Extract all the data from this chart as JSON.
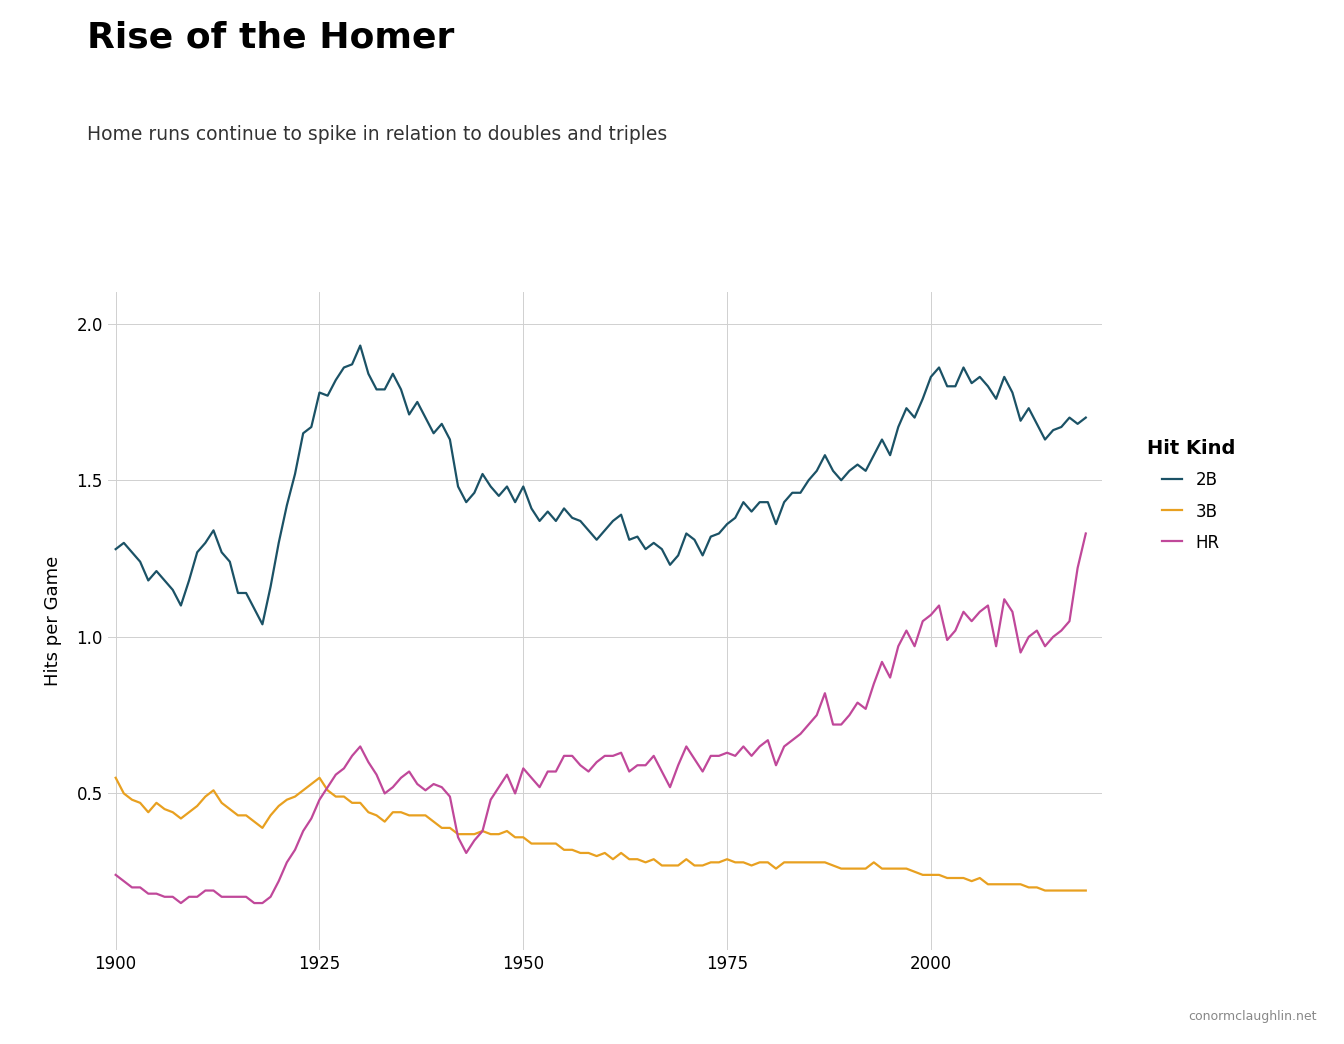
{
  "title": "Rise of the Homer",
  "subtitle": "Home runs continue to spike in relation to doubles and triples",
  "xlabel": "",
  "ylabel": "Hits per Game",
  "credit": "conormclaughlin.net",
  "ylim": [
    0.0,
    2.1
  ],
  "yticks": [
    0.5,
    1.0,
    1.5,
    2.0
  ],
  "color_2B": "#1B5266",
  "color_3B": "#E8A020",
  "color_HR": "#C0489A",
  "years": [
    1900,
    1901,
    1902,
    1903,
    1904,
    1905,
    1906,
    1907,
    1908,
    1909,
    1910,
    1911,
    1912,
    1913,
    1914,
    1915,
    1916,
    1917,
    1918,
    1919,
    1920,
    1921,
    1922,
    1923,
    1924,
    1925,
    1926,
    1927,
    1928,
    1929,
    1930,
    1931,
    1932,
    1933,
    1934,
    1935,
    1936,
    1937,
    1938,
    1939,
    1940,
    1941,
    1942,
    1943,
    1944,
    1945,
    1946,
    1947,
    1948,
    1949,
    1950,
    1951,
    1952,
    1953,
    1954,
    1955,
    1956,
    1957,
    1958,
    1959,
    1960,
    1961,
    1962,
    1963,
    1964,
    1965,
    1966,
    1967,
    1968,
    1969,
    1970,
    1971,
    1972,
    1973,
    1974,
    1975,
    1976,
    1977,
    1978,
    1979,
    1980,
    1981,
    1982,
    1983,
    1984,
    1985,
    1986,
    1987,
    1988,
    1989,
    1990,
    1991,
    1992,
    1993,
    1994,
    1995,
    1996,
    1997,
    1998,
    1999,
    2000,
    2001,
    2002,
    2003,
    2004,
    2005,
    2006,
    2007,
    2008,
    2009,
    2010,
    2011,
    2012,
    2013,
    2014,
    2015,
    2016,
    2017,
    2018,
    2019
  ],
  "vals_2B": [
    1.28,
    1.3,
    1.27,
    1.24,
    1.18,
    1.21,
    1.18,
    1.15,
    1.1,
    1.18,
    1.27,
    1.3,
    1.34,
    1.27,
    1.24,
    1.14,
    1.14,
    1.09,
    1.04,
    1.16,
    1.3,
    1.42,
    1.52,
    1.65,
    1.67,
    1.78,
    1.77,
    1.82,
    1.86,
    1.87,
    1.93,
    1.84,
    1.79,
    1.79,
    1.84,
    1.79,
    1.71,
    1.75,
    1.7,
    1.65,
    1.68,
    1.63,
    1.48,
    1.43,
    1.46,
    1.52,
    1.48,
    1.45,
    1.48,
    1.43,
    1.48,
    1.41,
    1.37,
    1.4,
    1.37,
    1.41,
    1.38,
    1.37,
    1.34,
    1.31,
    1.34,
    1.37,
    1.39,
    1.31,
    1.32,
    1.28,
    1.3,
    1.28,
    1.23,
    1.26,
    1.33,
    1.31,
    1.26,
    1.32,
    1.33,
    1.36,
    1.38,
    1.43,
    1.4,
    1.43,
    1.43,
    1.36,
    1.43,
    1.46,
    1.46,
    1.5,
    1.53,
    1.58,
    1.53,
    1.5,
    1.53,
    1.55,
    1.53,
    1.58,
    1.63,
    1.58,
    1.67,
    1.73,
    1.7,
    1.76,
    1.83,
    1.86,
    1.8,
    1.8,
    1.86,
    1.81,
    1.83,
    1.8,
    1.76,
    1.83,
    1.78,
    1.69,
    1.73,
    1.68,
    1.63,
    1.66,
    1.67,
    1.7,
    1.68,
    1.7
  ],
  "vals_3B": [
    0.55,
    0.5,
    0.48,
    0.47,
    0.44,
    0.47,
    0.45,
    0.44,
    0.42,
    0.44,
    0.46,
    0.49,
    0.51,
    0.47,
    0.45,
    0.43,
    0.43,
    0.41,
    0.39,
    0.43,
    0.46,
    0.48,
    0.49,
    0.51,
    0.53,
    0.55,
    0.51,
    0.49,
    0.49,
    0.47,
    0.47,
    0.44,
    0.43,
    0.41,
    0.44,
    0.44,
    0.43,
    0.43,
    0.43,
    0.41,
    0.39,
    0.39,
    0.37,
    0.37,
    0.37,
    0.38,
    0.37,
    0.37,
    0.38,
    0.36,
    0.36,
    0.34,
    0.34,
    0.34,
    0.34,
    0.32,
    0.32,
    0.31,
    0.31,
    0.3,
    0.31,
    0.29,
    0.31,
    0.29,
    0.29,
    0.28,
    0.29,
    0.27,
    0.27,
    0.27,
    0.29,
    0.27,
    0.27,
    0.28,
    0.28,
    0.29,
    0.28,
    0.28,
    0.27,
    0.28,
    0.28,
    0.26,
    0.28,
    0.28,
    0.28,
    0.28,
    0.28,
    0.28,
    0.27,
    0.26,
    0.26,
    0.26,
    0.26,
    0.28,
    0.26,
    0.26,
    0.26,
    0.26,
    0.25,
    0.24,
    0.24,
    0.24,
    0.23,
    0.23,
    0.23,
    0.22,
    0.23,
    0.21,
    0.21,
    0.21,
    0.21,
    0.21,
    0.2,
    0.2,
    0.19,
    0.19,
    0.19,
    0.19,
    0.19,
    0.19
  ],
  "vals_HR": [
    0.24,
    0.22,
    0.2,
    0.2,
    0.18,
    0.18,
    0.17,
    0.17,
    0.15,
    0.17,
    0.17,
    0.19,
    0.19,
    0.17,
    0.17,
    0.17,
    0.17,
    0.15,
    0.15,
    0.17,
    0.22,
    0.28,
    0.32,
    0.38,
    0.42,
    0.48,
    0.52,
    0.56,
    0.58,
    0.62,
    0.65,
    0.6,
    0.56,
    0.5,
    0.52,
    0.55,
    0.57,
    0.53,
    0.51,
    0.53,
    0.52,
    0.49,
    0.36,
    0.31,
    0.35,
    0.38,
    0.48,
    0.52,
    0.56,
    0.5,
    0.58,
    0.55,
    0.52,
    0.57,
    0.57,
    0.62,
    0.62,
    0.59,
    0.57,
    0.6,
    0.62,
    0.62,
    0.63,
    0.57,
    0.59,
    0.59,
    0.62,
    0.57,
    0.52,
    0.59,
    0.65,
    0.61,
    0.57,
    0.62,
    0.62,
    0.63,
    0.62,
    0.65,
    0.62,
    0.65,
    0.67,
    0.59,
    0.65,
    0.67,
    0.69,
    0.72,
    0.75,
    0.82,
    0.72,
    0.72,
    0.75,
    0.79,
    0.77,
    0.85,
    0.92,
    0.87,
    0.97,
    1.02,
    0.97,
    1.05,
    1.07,
    1.1,
    0.99,
    1.02,
    1.08,
    1.05,
    1.08,
    1.1,
    0.97,
    1.12,
    1.08,
    0.95,
    1.0,
    1.02,
    0.97,
    1.0,
    1.02,
    1.05,
    1.22,
    1.33
  ]
}
